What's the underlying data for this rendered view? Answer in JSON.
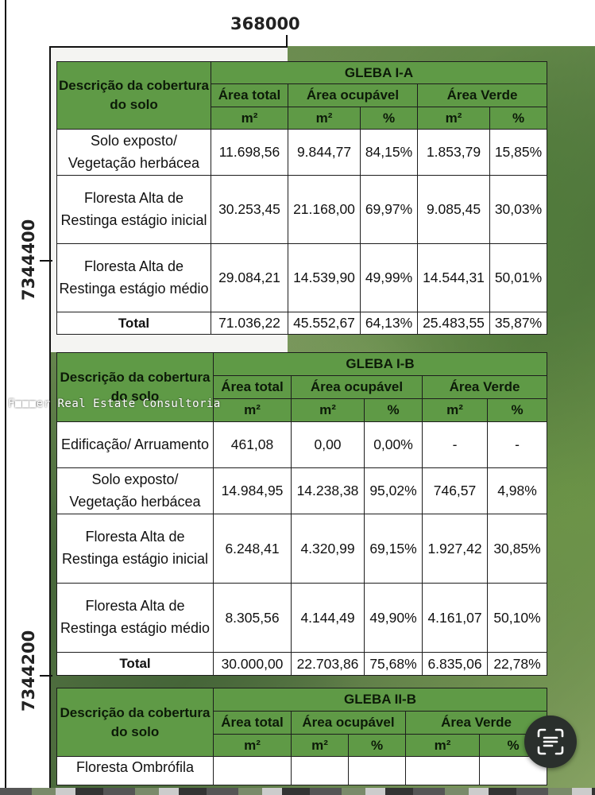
{
  "map": {
    "coord_x": "368000",
    "coord_y_1": "7344400",
    "coord_y_2": "7344200"
  },
  "watermark": "F■■■er Real Estate Consultoria",
  "headers": {
    "descricao": "Descrição da cobertura do solo",
    "area_total": "Área total",
    "area_ocupavel": "Área ocupável",
    "area_verde": "Área Verde",
    "m2": "m²",
    "pct": "%"
  },
  "gleba_1a": {
    "title": "GLEBA I-A",
    "rows": [
      {
        "desc": "Solo exposto/ Vegetação herbácea",
        "area_total": "11.698,56",
        "ocup_m2": "9.844,77",
        "ocup_pct": "84,15%",
        "verde_m2": "1.853,79",
        "verde_pct": "15,85%"
      },
      {
        "desc": "Floresta Alta de Restinga estágio inicial",
        "area_total": "30.253,45",
        "ocup_m2": "21.168,00",
        "ocup_pct": "69,97%",
        "verde_m2": "9.085,45",
        "verde_pct": "30,03%"
      },
      {
        "desc": "Floresta Alta de Restinga estágio médio",
        "area_total": "29.084,21",
        "ocup_m2": "14.539,90",
        "ocup_pct": "49,99%",
        "verde_m2": "14.544,31",
        "verde_pct": "50,01%"
      }
    ],
    "total": {
      "label": "Total",
      "area_total": "71.036,22",
      "ocup_m2": "45.552,67",
      "ocup_pct": "64,13%",
      "verde_m2": "25.483,55",
      "verde_pct": "35,87%"
    }
  },
  "gleba_1b": {
    "title": "GLEBA I-B",
    "rows": [
      {
        "desc": "Edificação/ Arruamento",
        "area_total": "461,08",
        "ocup_m2": "0,00",
        "ocup_pct": "0,00%",
        "verde_m2": "-",
        "verde_pct": "-"
      },
      {
        "desc": "Solo exposto/ Vegetação herbácea",
        "area_total": "14.984,95",
        "ocup_m2": "14.238,38",
        "ocup_pct": "95,02%",
        "verde_m2": "746,57",
        "verde_pct": "4,98%"
      },
      {
        "desc": "Floresta Alta de Restinga estágio inicial",
        "area_total": "6.248,41",
        "ocup_m2": "4.320,99",
        "ocup_pct": "69,15%",
        "verde_m2": "1.927,42",
        "verde_pct": "30,85%"
      },
      {
        "desc": "Floresta Alta de Restinga estágio médio",
        "area_total": "8.305,56",
        "ocup_m2": "4.144,49",
        "ocup_pct": "49,90%",
        "verde_m2": "4.161,07",
        "verde_pct": "50,10%"
      }
    ],
    "total": {
      "label": "Total",
      "area_total": "30.000,00",
      "ocup_m2": "22.703,86",
      "ocup_pct": "75,68%",
      "verde_m2": "6.835,06",
      "verde_pct": "22,78%"
    }
  },
  "gleba_2b": {
    "title": "GLEBA II-B",
    "rows": [
      {
        "desc": "Floresta Ombrófila"
      }
    ]
  },
  "scan_button": {
    "icon": "text-scan-icon"
  }
}
